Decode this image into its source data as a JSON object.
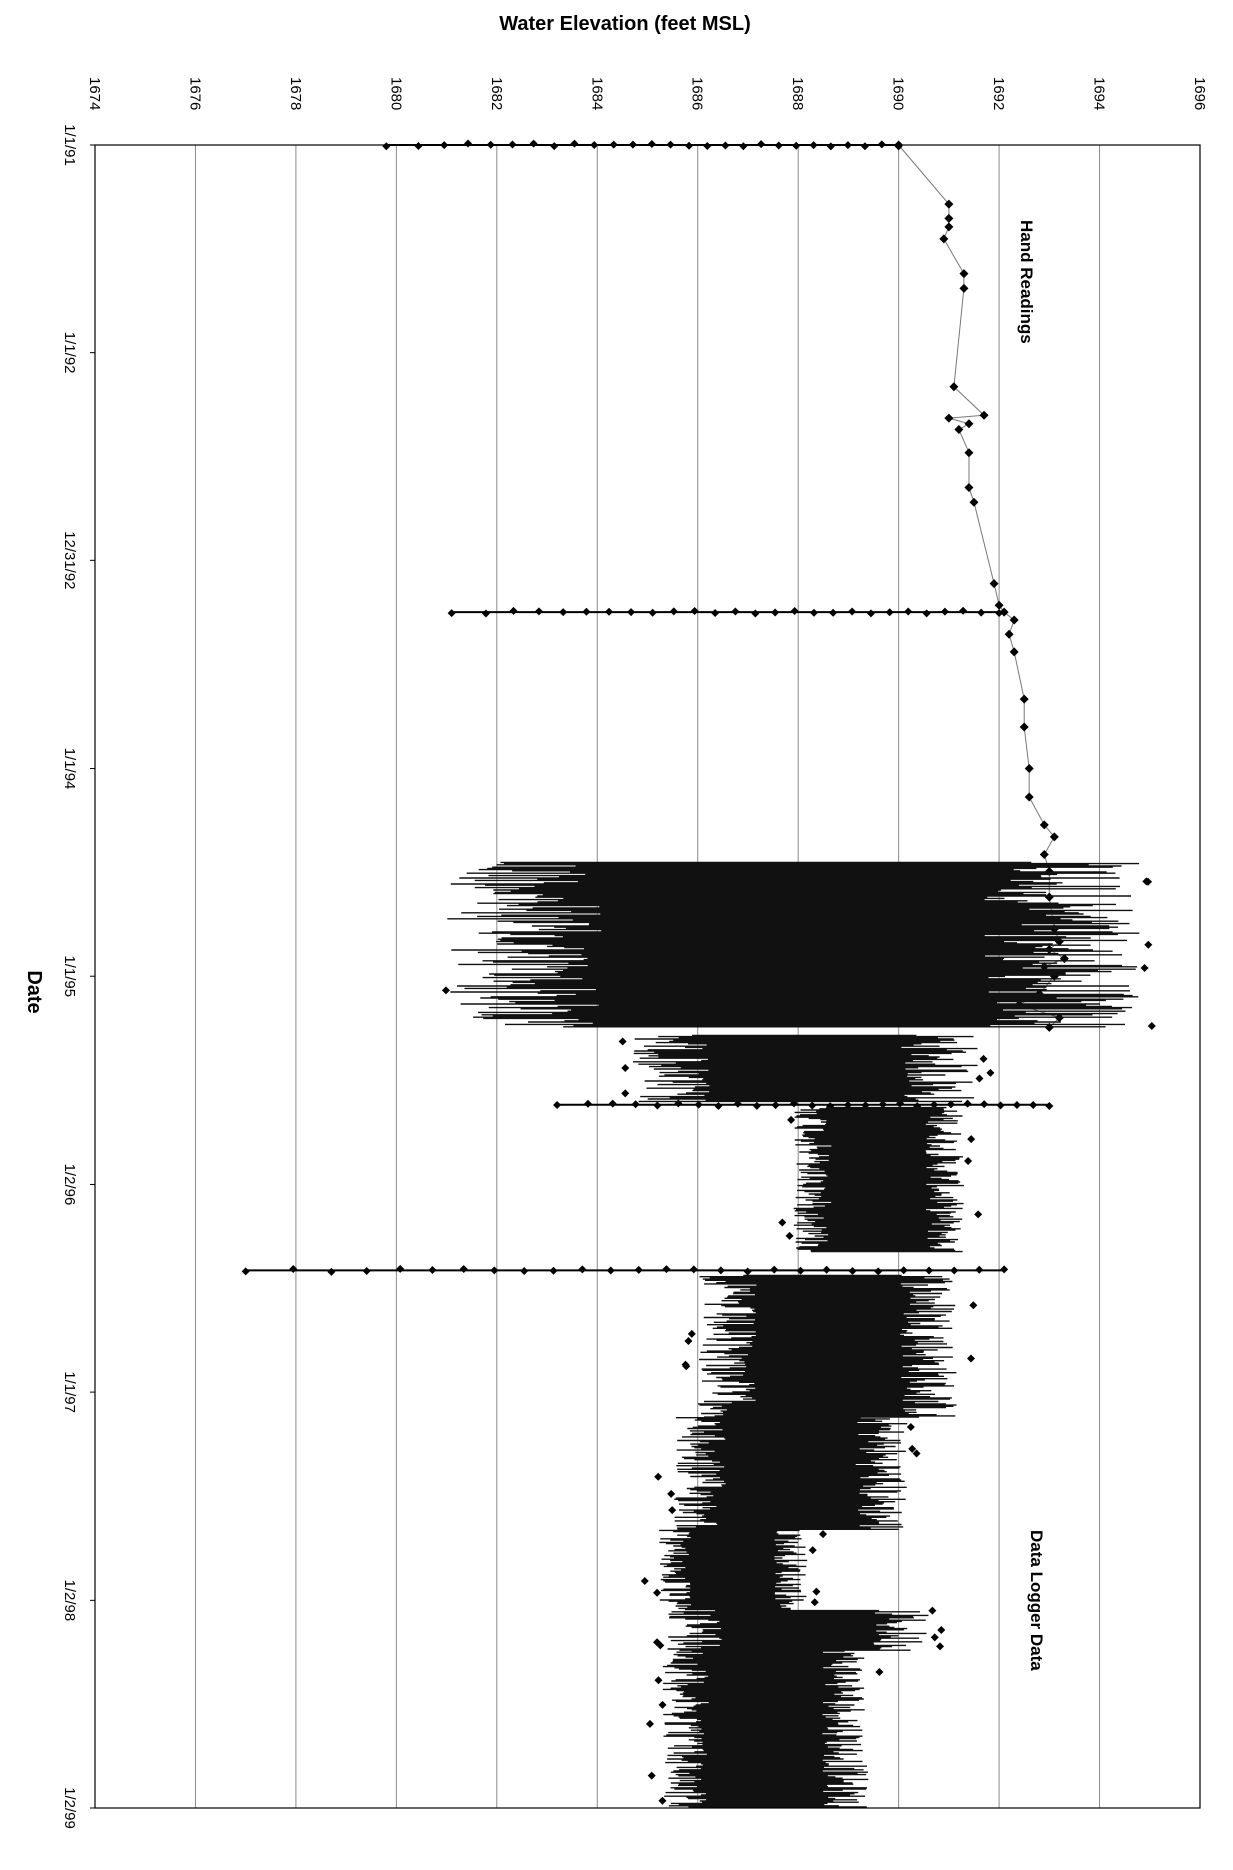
{
  "chart_data": {
    "type": "scatter",
    "title": "",
    "xlabel": "Water Elevation (feet MSL)",
    "ylabel": "Date",
    "xlim": [
      1674,
      1696
    ],
    "x_ticks": [
      "1674",
      "1676",
      "1678",
      "1680",
      "1682",
      "1684",
      "1686",
      "1688",
      "1690",
      "1692",
      "1694",
      "1696"
    ],
    "ylim": [
      "1/1/91",
      "1/2/99"
    ],
    "y_ticks": [
      "1/1/91",
      "1/1/92",
      "12/31/92",
      "1/1/94",
      "1/1/95",
      "1/2/96",
      "1/1/97",
      "1/2/98",
      "1/2/99"
    ],
    "grid": "vertical lines at each x tick",
    "annotations": [
      "Hand Readings",
      "Data Logger Data"
    ],
    "series": [
      {
        "marker": "diamond",
        "points": [
          {
            "date": "1991-01-01",
            "value": 1690.0
          },
          {
            "date": "1991-04-15",
            "value": 1691.0
          },
          {
            "date": "1991-05-10",
            "value": 1691.0
          },
          {
            "date": "1991-05-25",
            "value": 1691.0
          },
          {
            "date": "1991-06-15",
            "value": 1690.9
          },
          {
            "date": "1991-08-15",
            "value": 1691.3
          },
          {
            "date": "1991-09-10",
            "value": 1691.3
          },
          {
            "date": "1992-03-01",
            "value": 1691.1
          },
          {
            "date": "1992-04-20",
            "value": 1691.7
          },
          {
            "date": "1992-04-25",
            "value": 1691.0
          },
          {
            "date": "1992-05-05",
            "value": 1691.4
          },
          {
            "date": "1992-05-15",
            "value": 1691.2
          },
          {
            "date": "1992-06-25",
            "value": 1691.4
          },
          {
            "date": "1992-08-25",
            "value": 1691.4
          },
          {
            "date": "1992-09-20",
            "value": 1691.5
          },
          {
            "date": "1993-02-10",
            "value": 1691.9
          },
          {
            "date": "1993-03-20",
            "value": 1692.0
          },
          {
            "date": "1993-04-01",
            "value": 1692.1
          },
          {
            "date": "1993-04-15",
            "value": 1692.3
          },
          {
            "date": "1993-05-10",
            "value": 1692.2
          },
          {
            "date": "1993-06-10",
            "value": 1692.3
          },
          {
            "date": "1993-09-01",
            "value": 1692.5
          },
          {
            "date": "1993-10-20",
            "value": 1692.5
          },
          {
            "date": "1994-01-01",
            "value": 1692.6
          },
          {
            "date": "1994-02-20",
            "value": 1692.6
          },
          {
            "date": "1994-04-10",
            "value": 1692.9
          },
          {
            "date": "1994-05-01",
            "value": 1693.1
          },
          {
            "date": "1994-06-01",
            "value": 1692.9
          },
          {
            "date": "1994-07-01",
            "value": 1693.0
          },
          {
            "date": "1994-08-15",
            "value": 1693.0
          },
          {
            "date": "1994-10-10",
            "value": 1693.1
          },
          {
            "date": "1994-11-01",
            "value": 1693.2
          },
          {
            "date": "1994-11-15",
            "value": 1693.0
          },
          {
            "date": "1994-12-01",
            "value": 1693.3
          },
          {
            "date": "1994-12-15",
            "value": 1692.9
          },
          {
            "date": "1995-01-01",
            "value": 1693.1
          },
          {
            "date": "1995-02-01",
            "value": 1692.8
          },
          {
            "date": "1995-02-20",
            "value": 1692.4
          },
          {
            "date": "1995-03-15",
            "value": 1693.2
          },
          {
            "date": "1995-04-01",
            "value": 1693.0
          }
        ]
      },
      {
        "marker": "diamond",
        "name": "",
        "traverses": [
          {
            "date": "1991-01-01",
            "from": 1690.0,
            "to": 1679.8
          },
          {
            "date": "1993-04-01",
            "from": 1692.0,
            "to": 1681.1
          },
          {
            "date": "1995-08-15",
            "from": 1693.0,
            "to": 1683.2
          },
          {
            "date": "1996-06-01",
            "from": 1692.1,
            "to": 1677.0
          }
        ]
      },
      {
        "marker": "line",
        "logger_bands": [
          {
            "start": "1994-06-15",
            "end": "1995-04-01",
            "min": 1681.0,
            "max": 1694.8
          },
          {
            "start": "1995-04-15",
            "end": "1995-08-10",
            "min": 1684.7,
            "max": 1691.6
          },
          {
            "start": "1995-08-20",
            "end": "1996-05-01",
            "min": 1687.9,
            "max": 1691.3
          },
          {
            "start": "1996-06-10",
            "end": "1997-02-15",
            "min": 1686.0,
            "max": 1691.2
          },
          {
            "start": "1997-02-15",
            "end": "1997-09-01",
            "min": 1685.5,
            "max": 1690.2
          },
          {
            "start": "1997-09-01",
            "end": "1998-01-20",
            "min": 1685.2,
            "max": 1688.2
          },
          {
            "start": "1998-01-20",
            "end": "1998-04-01",
            "min": 1685.4,
            "max": 1690.6
          },
          {
            "start": "1998-04-01",
            "end": "1999-01-02",
            "min": 1685.3,
            "max": 1689.4
          }
        ]
      }
    ]
  }
}
